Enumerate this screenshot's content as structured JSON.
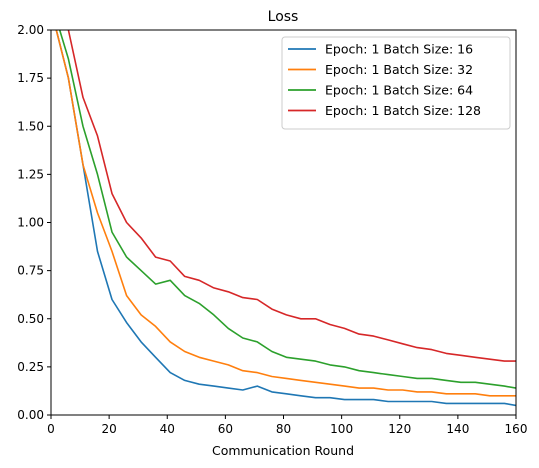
{
  "chart_data": {
    "type": "line",
    "title": "Loss",
    "xlabel": "Communication Round",
    "ylabel": "",
    "xlim": [
      0,
      160
    ],
    "ylim": [
      0,
      2.0
    ],
    "xticks": [
      "0",
      "20",
      "40",
      "60",
      "80",
      "100",
      "120",
      "140",
      "160"
    ],
    "yticks": [
      "0.00",
      "0.25",
      "0.50",
      "0.75",
      "1.00",
      "1.25",
      "1.50",
      "1.75",
      "2.00"
    ],
    "grid": false,
    "legend_position": "top-right",
    "x": [
      1,
      6,
      11,
      16,
      21,
      26,
      31,
      36,
      41,
      46,
      51,
      56,
      61,
      66,
      71,
      76,
      81,
      86,
      91,
      96,
      101,
      106,
      111,
      116,
      121,
      126,
      131,
      136,
      141,
      146,
      151,
      156,
      160
    ],
    "series": [
      {
        "name": "Epoch: 1  Batch Size: 16",
        "color": "#1f77b4",
        "values": [
          2.05,
          1.75,
          1.3,
          0.85,
          0.6,
          0.48,
          0.38,
          0.3,
          0.22,
          0.18,
          0.16,
          0.15,
          0.14,
          0.13,
          0.15,
          0.12,
          0.11,
          0.1,
          0.09,
          0.09,
          0.08,
          0.08,
          0.08,
          0.07,
          0.07,
          0.07,
          0.07,
          0.06,
          0.06,
          0.06,
          0.06,
          0.06,
          0.05
        ]
      },
      {
        "name": "Epoch: 1  Batch Size: 32",
        "color": "#ff7f0e",
        "values": [
          2.05,
          1.75,
          1.3,
          1.05,
          0.85,
          0.62,
          0.52,
          0.46,
          0.38,
          0.33,
          0.3,
          0.28,
          0.26,
          0.23,
          0.22,
          0.2,
          0.19,
          0.18,
          0.17,
          0.16,
          0.15,
          0.14,
          0.14,
          0.13,
          0.13,
          0.12,
          0.12,
          0.11,
          0.11,
          0.11,
          0.1,
          0.1,
          0.1
        ]
      },
      {
        "name": "Epoch: 1  Batch Size: 64",
        "color": "#2ca02c",
        "values": [
          2.1,
          1.85,
          1.5,
          1.25,
          0.95,
          0.82,
          0.75,
          0.68,
          0.7,
          0.62,
          0.58,
          0.52,
          0.45,
          0.4,
          0.38,
          0.33,
          0.3,
          0.29,
          0.28,
          0.26,
          0.25,
          0.23,
          0.22,
          0.21,
          0.2,
          0.19,
          0.19,
          0.18,
          0.17,
          0.17,
          0.16,
          0.15,
          0.14
        ]
      },
      {
        "name": "Epoch: 1  Batch Size: 128",
        "color": "#d62728",
        "values": [
          2.15,
          2.0,
          1.65,
          1.45,
          1.15,
          1.0,
          0.92,
          0.82,
          0.8,
          0.72,
          0.7,
          0.66,
          0.64,
          0.61,
          0.6,
          0.55,
          0.52,
          0.5,
          0.5,
          0.47,
          0.45,
          0.42,
          0.41,
          0.39,
          0.37,
          0.35,
          0.34,
          0.32,
          0.31,
          0.3,
          0.29,
          0.28,
          0.28
        ]
      }
    ]
  }
}
